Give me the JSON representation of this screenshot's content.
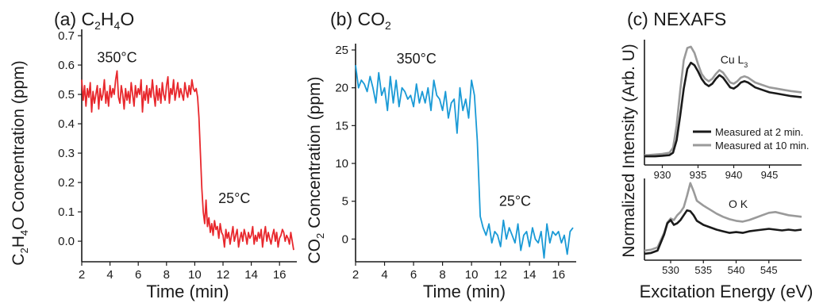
{
  "chart_data": [
    {
      "type": "line",
      "panel_label": "(a)",
      "title": "C2H4O",
      "xlabel": "Time (min)",
      "ylabel": "C2H4O Concentration (ppm)",
      "xlim": [
        2,
        17
      ],
      "ylim": [
        -0.07,
        0.7
      ],
      "xticks": [
        2,
        4,
        6,
        8,
        10,
        12,
        14,
        16
      ],
      "yticks": [
        0.0,
        0.1,
        0.2,
        0.3,
        0.4,
        0.5,
        0.6,
        0.7
      ],
      "annotations": [
        {
          "text": "350°C",
          "x": 4.5,
          "y": 0.61
        },
        {
          "text": "25°C",
          "x": 12.8,
          "y": 0.13
        }
      ],
      "series": [
        {
          "color": "#e8282d",
          "x": [
            2.0,
            2.1,
            2.2,
            2.3,
            2.4,
            2.5,
            2.6,
            2.7,
            2.8,
            2.9,
            3.0,
            3.1,
            3.2,
            3.3,
            3.4,
            3.5,
            3.6,
            3.7,
            3.8,
            3.9,
            4.0,
            4.1,
            4.2,
            4.3,
            4.4,
            4.5,
            4.6,
            4.7,
            4.8,
            4.9,
            5.0,
            5.1,
            5.2,
            5.3,
            5.4,
            5.5,
            5.6,
            5.7,
            5.8,
            5.9,
            6.0,
            6.1,
            6.2,
            6.3,
            6.4,
            6.5,
            6.6,
            6.7,
            6.8,
            6.9,
            7.0,
            7.1,
            7.2,
            7.3,
            7.4,
            7.5,
            7.6,
            7.7,
            7.8,
            7.9,
            8.0,
            8.1,
            8.2,
            8.3,
            8.4,
            8.5,
            8.6,
            8.7,
            8.8,
            8.9,
            9.0,
            9.1,
            9.2,
            9.3,
            9.4,
            9.5,
            9.6,
            9.7,
            9.8,
            9.9,
            10.0,
            10.1,
            10.2,
            10.3,
            10.4,
            10.5,
            10.6,
            10.7,
            10.8,
            10.9,
            11.0,
            11.1,
            11.2,
            11.3,
            11.4,
            11.5,
            11.6,
            11.7,
            11.8,
            11.9,
            12.0,
            12.1,
            12.2,
            12.3,
            12.4,
            12.5,
            12.6,
            12.7,
            12.8,
            12.9,
            13.0,
            13.1,
            13.2,
            13.3,
            13.4,
            13.5,
            13.6,
            13.7,
            13.8,
            13.9,
            14.0,
            14.1,
            14.2,
            14.3,
            14.4,
            14.5,
            14.6,
            14.7,
            14.8,
            14.9,
            15.0,
            15.1,
            15.2,
            15.3,
            15.4,
            15.5,
            15.6,
            15.7,
            15.8,
            15.9,
            16.0,
            16.1,
            16.2,
            16.3,
            16.4,
            16.5,
            16.6,
            16.7,
            16.8,
            16.9,
            17.0
          ],
          "y": [
            0.55,
            0.48,
            0.53,
            0.46,
            0.52,
            0.49,
            0.54,
            0.44,
            0.51,
            0.47,
            0.5,
            0.53,
            0.45,
            0.52,
            0.48,
            0.5,
            0.55,
            0.47,
            0.51,
            0.46,
            0.53,
            0.49,
            0.52,
            0.5,
            0.55,
            0.58,
            0.49,
            0.47,
            0.53,
            0.5,
            0.45,
            0.52,
            0.48,
            0.51,
            0.47,
            0.54,
            0.5,
            0.46,
            0.53,
            0.49,
            0.52,
            0.5,
            0.55,
            0.44,
            0.51,
            0.48,
            0.53,
            0.47,
            0.52,
            0.49,
            0.55,
            0.5,
            0.46,
            0.53,
            0.48,
            0.52,
            0.47,
            0.54,
            0.5,
            0.48,
            0.53,
            0.56,
            0.47,
            0.52,
            0.5,
            0.55,
            0.48,
            0.51,
            0.54,
            0.49,
            0.52,
            0.5,
            0.48,
            0.54,
            0.51,
            0.49,
            0.53,
            0.5,
            0.55,
            0.52,
            0.51,
            0.52,
            0.49,
            0.42,
            0.3,
            0.18,
            0.1,
            0.06,
            0.14,
            0.05,
            0.08,
            0.03,
            0.06,
            0.02,
            0.07,
            0.04,
            0.05,
            0.01,
            0.06,
            0.03,
            0.02,
            -0.02,
            0.04,
            0.01,
            0.03,
            -0.01,
            0.02,
            0.05,
            0.0,
            0.02,
            0.04,
            -0.02,
            0.01,
            0.03,
            0.0,
            0.04,
            0.02,
            -0.01,
            0.03,
            0.01,
            0.02,
            0.05,
            -0.01,
            0.02,
            0.0,
            0.03,
            0.01,
            0.04,
            -0.02,
            0.02,
            0.05,
            0.0,
            0.03,
            0.01,
            -0.01,
            0.02,
            0.04,
            0.0,
            0.03,
            -0.02,
            0.01,
            0.02,
            0.04,
            0.03,
            0.0,
            0.02,
            0.01,
            -0.01,
            0.03,
            0.0,
            -0.03
          ]
        }
      ]
    },
    {
      "type": "line",
      "panel_label": "(b)",
      "title": "CO2",
      "xlabel": "Time (min)",
      "ylabel": "CO2 Concentration (ppm)",
      "xlim": [
        2,
        17
      ],
      "ylim": [
        -3,
        25
      ],
      "xticks": [
        2,
        4,
        6,
        8,
        10,
        12,
        14,
        16
      ],
      "yticks": [
        0,
        5,
        10,
        15,
        20,
        25
      ],
      "annotations": [
        {
          "text": "350°C",
          "x": 6.2,
          "y": 23.2
        },
        {
          "text": "25°C",
          "x": 13.0,
          "y": 4.4
        }
      ],
      "series": [
        {
          "color": "#1a9ad6",
          "x": [
            2.0,
            2.2,
            2.4,
            2.6,
            2.8,
            3.0,
            3.2,
            3.4,
            3.6,
            3.8,
            4.0,
            4.2,
            4.4,
            4.6,
            4.8,
            5.0,
            5.2,
            5.4,
            5.6,
            5.8,
            6.0,
            6.2,
            6.4,
            6.6,
            6.8,
            7.0,
            7.2,
            7.4,
            7.6,
            7.8,
            8.0,
            8.2,
            8.4,
            8.6,
            8.8,
            9.0,
            9.2,
            9.4,
            9.6,
            9.8,
            10.0,
            10.2,
            10.4,
            10.6,
            10.8,
            11.0,
            11.2,
            11.4,
            11.6,
            11.8,
            12.0,
            12.2,
            12.4,
            12.6,
            12.8,
            13.0,
            13.2,
            13.4,
            13.6,
            13.8,
            14.0,
            14.2,
            14.4,
            14.6,
            14.8,
            15.0,
            15.2,
            15.4,
            15.6,
            15.8,
            16.0,
            16.2,
            16.4,
            16.6,
            16.8,
            17.0
          ],
          "y": [
            23,
            20,
            21,
            20.5,
            19.5,
            21.5,
            20,
            18,
            22,
            19,
            20,
            17,
            21.5,
            18,
            21,
            17.5,
            20,
            19.5,
            18.5,
            19,
            17.5,
            20.5,
            18,
            19.5,
            18,
            20,
            17,
            21,
            19,
            18.5,
            17,
            19.5,
            16,
            18,
            18.5,
            14,
            20,
            17,
            18.5,
            16,
            21,
            19,
            13,
            3,
            1.5,
            0.5,
            2,
            -0.5,
            1,
            0.5,
            -1,
            2.5,
            0,
            1.5,
            0.5,
            -0.5,
            2,
            -1.5,
            0.5,
            1,
            -1,
            1.5,
            0,
            -0.5,
            1,
            -2.5,
            2,
            -0.5,
            1,
            0.5,
            1,
            -0.5,
            0.5,
            -2,
            1,
            1.5
          ]
        }
      ]
    },
    {
      "type": "line",
      "panel_label": "(c)",
      "title": "NEXAFS",
      "ylabel": "Normalized Intensity (Arb. U)",
      "xlabel": "Excitation Energy (eV)",
      "subplots": [
        {
          "label": "Cu L3",
          "xlim": [
            927.5,
            949.5
          ],
          "xticks": [
            930,
            935,
            940,
            945
          ],
          "legend": [
            {
              "name": "Measured at 2 min.",
              "color": "#1a1a1a"
            },
            {
              "name": "Measured at 10 min.",
              "color": "#9a9a9a"
            }
          ],
          "series": [
            {
              "name": "Measured at 2 min.",
              "color": "#1a1a1a",
              "x": [
                927.5,
                928,
                929,
                930,
                931,
                931.5,
                932,
                932.5,
                933,
                933.5,
                934,
                934.5,
                935,
                935.5,
                936,
                936.5,
                937,
                937.5,
                938,
                938.5,
                939,
                939.5,
                940,
                940.5,
                941,
                941.5,
                942,
                942.5,
                943,
                944,
                945,
                946,
                947,
                948,
                949.5
              ],
              "y": [
                0.07,
                0.07,
                0.07,
                0.075,
                0.08,
                0.1,
                0.2,
                0.4,
                0.62,
                0.78,
                0.83,
                0.81,
                0.76,
                0.7,
                0.66,
                0.64,
                0.66,
                0.7,
                0.73,
                0.71,
                0.67,
                0.63,
                0.62,
                0.64,
                0.67,
                0.68,
                0.67,
                0.65,
                0.63,
                0.61,
                0.59,
                0.58,
                0.57,
                0.56,
                0.55
              ]
            },
            {
              "name": "Measured at 10 min.",
              "color": "#9a9a9a",
              "x": [
                927.5,
                928,
                929,
                930,
                931,
                931.5,
                932,
                932.5,
                933,
                933.5,
                934,
                934.5,
                935,
                935.5,
                936,
                936.5,
                937,
                937.5,
                938,
                938.5,
                939,
                939.5,
                940,
                940.5,
                941,
                941.5,
                942,
                942.5,
                943,
                944,
                945,
                946,
                947,
                948,
                949.5
              ],
              "y": [
                0.08,
                0.08,
                0.085,
                0.09,
                0.1,
                0.14,
                0.32,
                0.6,
                0.85,
                0.95,
                0.96,
                0.91,
                0.82,
                0.74,
                0.7,
                0.68,
                0.7,
                0.74,
                0.77,
                0.75,
                0.71,
                0.67,
                0.66,
                0.68,
                0.71,
                0.72,
                0.71,
                0.69,
                0.67,
                0.65,
                0.63,
                0.62,
                0.61,
                0.6,
                0.59
              ]
            }
          ]
        },
        {
          "label": "O K",
          "xlim": [
            526,
            550
          ],
          "xticks": [
            530,
            535,
            540,
            545
          ],
          "series": [
            {
              "name": "Measured at 2 min.",
              "color": "#1a1a1a",
              "x": [
                526,
                527,
                528,
                529,
                529.5,
                530,
                530.5,
                531,
                531.5,
                532,
                532.5,
                533,
                533.5,
                534,
                535,
                536,
                537,
                538,
                539,
                540,
                541,
                542,
                543,
                544,
                545,
                546,
                547,
                548,
                549,
                550
              ],
              "y": [
                0.08,
                0.09,
                0.12,
                0.32,
                0.46,
                0.5,
                0.44,
                0.46,
                0.5,
                0.56,
                0.62,
                0.61,
                0.56,
                0.49,
                0.44,
                0.41,
                0.38,
                0.36,
                0.34,
                0.35,
                0.34,
                0.36,
                0.37,
                0.38,
                0.39,
                0.38,
                0.37,
                0.38,
                0.37,
                0.38
              ]
            },
            {
              "name": "Measured at 10 min.",
              "color": "#9a9a9a",
              "x": [
                526,
                527,
                528,
                529,
                529.5,
                530,
                530.5,
                531,
                531.5,
                532,
                532.5,
                533,
                533.5,
                534,
                535,
                536,
                537,
                538,
                539,
                540,
                541,
                542,
                543,
                544,
                545,
                546,
                547,
                548,
                549,
                550
              ],
              "y": [
                0.12,
                0.13,
                0.16,
                0.34,
                0.47,
                0.52,
                0.5,
                0.56,
                0.6,
                0.66,
                0.8,
                0.96,
                0.86,
                0.74,
                0.68,
                0.63,
                0.58,
                0.54,
                0.51,
                0.49,
                0.48,
                0.5,
                0.53,
                0.56,
                0.59,
                0.6,
                0.58,
                0.56,
                0.55,
                0.54
              ]
            }
          ]
        }
      ]
    }
  ]
}
